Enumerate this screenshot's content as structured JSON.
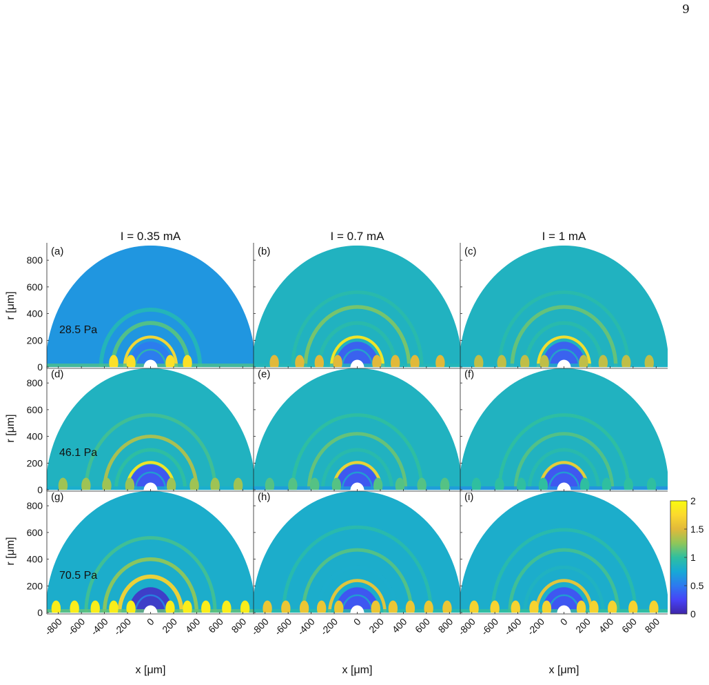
{
  "page_number": "9",
  "chart_data": {
    "type": "heatmap",
    "column_titles": [
      "I = 0.35 mA",
      "I = 0.7 mA",
      "I = 1 mA"
    ],
    "row_labels": [
      "28.5 Pa",
      "46.1 Pa",
      "70.5 Pa"
    ],
    "panel_labels": [
      "(a)",
      "(b)",
      "(c)",
      "(d)",
      "(e)",
      "(f)",
      "(g)",
      "(h)",
      "(i)"
    ],
    "xlabel": "x [μm]",
    "ylabel": "r [μm]",
    "x_ticks": [
      -800,
      -600,
      -400,
      -200,
      0,
      200,
      400,
      600,
      800
    ],
    "x_tick_labels": [
      "-800",
      "-600",
      "-400",
      "-200",
      "0",
      "200",
      "400",
      "600",
      "800"
    ],
    "y_ticks": [
      0,
      200,
      400,
      600,
      800
    ],
    "y_tick_labels": [
      "0",
      "200",
      "400",
      "600",
      "800"
    ],
    "xlim": [
      -900,
      900
    ],
    "ylim": [
      -10,
      930
    ],
    "domain_radius": 910,
    "hole_radius": 60,
    "colorbar": {
      "ticks": [
        0,
        0.5,
        1,
        1.5,
        2
      ],
      "tick_labels": [
        "0",
        "0.5",
        "1",
        "1.5",
        "2"
      ],
      "range": [
        0,
        2
      ],
      "colors": [
        "#3e26a8",
        "#4743f7",
        "#2d7aef",
        "#17a9d6",
        "#2fbfa0",
        "#8fc65a",
        "#e1b93a",
        "#fbd92e",
        "#f9fb0e"
      ]
    },
    "panels": [
      {
        "label": "(a)",
        "bands": [
          {
            "r": 225,
            "value": 1.75,
            "width": 22
          },
          {
            "r": 330,
            "value": 1.1,
            "width": 30
          },
          {
            "r": 430,
            "value": 0.9,
            "width": 30
          }
        ],
        "near_electrode_value": 0.5,
        "blobs_x": [
          -320,
          -170,
          170,
          320
        ],
        "floor_value": 1.8,
        "background": 0.65
      },
      {
        "label": "(b)",
        "bands": [
          {
            "r": 225,
            "value": 1.85,
            "width": 22
          },
          {
            "r": 330,
            "value": 0.95,
            "width": 28
          },
          {
            "r": 450,
            "value": 1.2,
            "width": 28
          },
          {
            "r": 560,
            "value": 0.95,
            "width": 26
          }
        ],
        "near_electrode_value": 0.35,
        "blobs_x": [
          -720,
          -500,
          -330,
          -170,
          170,
          330,
          500,
          720
        ],
        "floor_value": 1.5,
        "background": 0.85
      },
      {
        "label": "(c)",
        "bands": [
          {
            "r": 225,
            "value": 1.8,
            "width": 22
          },
          {
            "r": 330,
            "value": 0.95,
            "width": 28
          },
          {
            "r": 450,
            "value": 1.15,
            "width": 28
          },
          {
            "r": 560,
            "value": 0.95,
            "width": 26
          }
        ],
        "near_electrode_value": 0.35,
        "blobs_x": [
          -740,
          -540,
          -340,
          -170,
          170,
          340,
          540,
          740
        ],
        "floor_value": 1.4,
        "background": 0.85
      },
      {
        "label": "(d)",
        "bands": [
          {
            "r": 205,
            "value": 1.85,
            "width": 22
          },
          {
            "r": 300,
            "value": 1.0,
            "width": 26
          },
          {
            "r": 400,
            "value": 1.35,
            "width": 26
          },
          {
            "r": 560,
            "value": 1.05,
            "width": 26
          }
        ],
        "near_electrode_value": 0.3,
        "blobs_x": [
          -760,
          -560,
          -380,
          -180,
          180,
          380,
          560,
          760
        ],
        "floor_value": 1.3,
        "background": 0.85
      },
      {
        "label": "(e)",
        "bands": [
          {
            "r": 205,
            "value": 1.7,
            "width": 22
          },
          {
            "r": 300,
            "value": 0.95,
            "width": 26
          },
          {
            "r": 420,
            "value": 1.15,
            "width": 26
          },
          {
            "r": 560,
            "value": 1.0,
            "width": 26
          }
        ],
        "near_electrode_value": 0.3,
        "blobs_x": [
          -760,
          -560,
          -370,
          -180,
          180,
          370,
          560,
          760
        ],
        "floor_value": 1.1,
        "background": 0.85
      },
      {
        "label": "(f)",
        "bands": [
          {
            "r": 205,
            "value": 1.65,
            "width": 22
          },
          {
            "r": 300,
            "value": 0.95,
            "width": 26
          },
          {
            "r": 420,
            "value": 1.1,
            "width": 26
          },
          {
            "r": 560,
            "value": 1.0,
            "width": 26
          }
        ],
        "near_electrode_value": 0.3,
        "blobs_x": [
          -760,
          -560,
          -370,
          -180,
          180,
          370,
          560,
          760
        ],
        "floor_value": 1.0,
        "background": 0.85
      },
      {
        "label": "(g)",
        "bands": [
          {
            "r": 270,
            "value": 1.7,
            "width": 30
          },
          {
            "r": 400,
            "value": 1.25,
            "width": 28
          },
          {
            "r": 560,
            "value": 1.05,
            "width": 26
          }
        ],
        "near_electrode_value": 0.1,
        "blobs_x": [
          -820,
          -660,
          -480,
          -320,
          -170,
          170,
          320,
          480,
          660,
          820
        ],
        "floor_value": 1.9,
        "background": 0.8
      },
      {
        "label": "(h)",
        "bands": [
          {
            "r": 240,
            "value": 1.6,
            "width": 24
          },
          {
            "r": 340,
            "value": 0.8,
            "width": 26
          },
          {
            "r": 470,
            "value": 1.1,
            "width": 26
          },
          {
            "r": 640,
            "value": 0.95,
            "width": 26
          }
        ],
        "near_electrode_value": 0.3,
        "blobs_x": [
          -780,
          -620,
          -460,
          -310,
          -160,
          160,
          310,
          460,
          620,
          780
        ],
        "floor_value": 1.6,
        "background": 0.8
      },
      {
        "label": "(i)",
        "bands": [
          {
            "r": 240,
            "value": 1.6,
            "width": 24
          },
          {
            "r": 340,
            "value": 0.85,
            "width": 26
          },
          {
            "r": 470,
            "value": 1.05,
            "width": 26
          },
          {
            "r": 620,
            "value": 0.95,
            "width": 26
          }
        ],
        "near_electrode_value": 0.3,
        "blobs_x": [
          -780,
          -600,
          -420,
          -260,
          -150,
          150,
          260,
          420,
          600,
          780
        ],
        "floor_value": 1.7,
        "background": 0.8
      }
    ]
  }
}
